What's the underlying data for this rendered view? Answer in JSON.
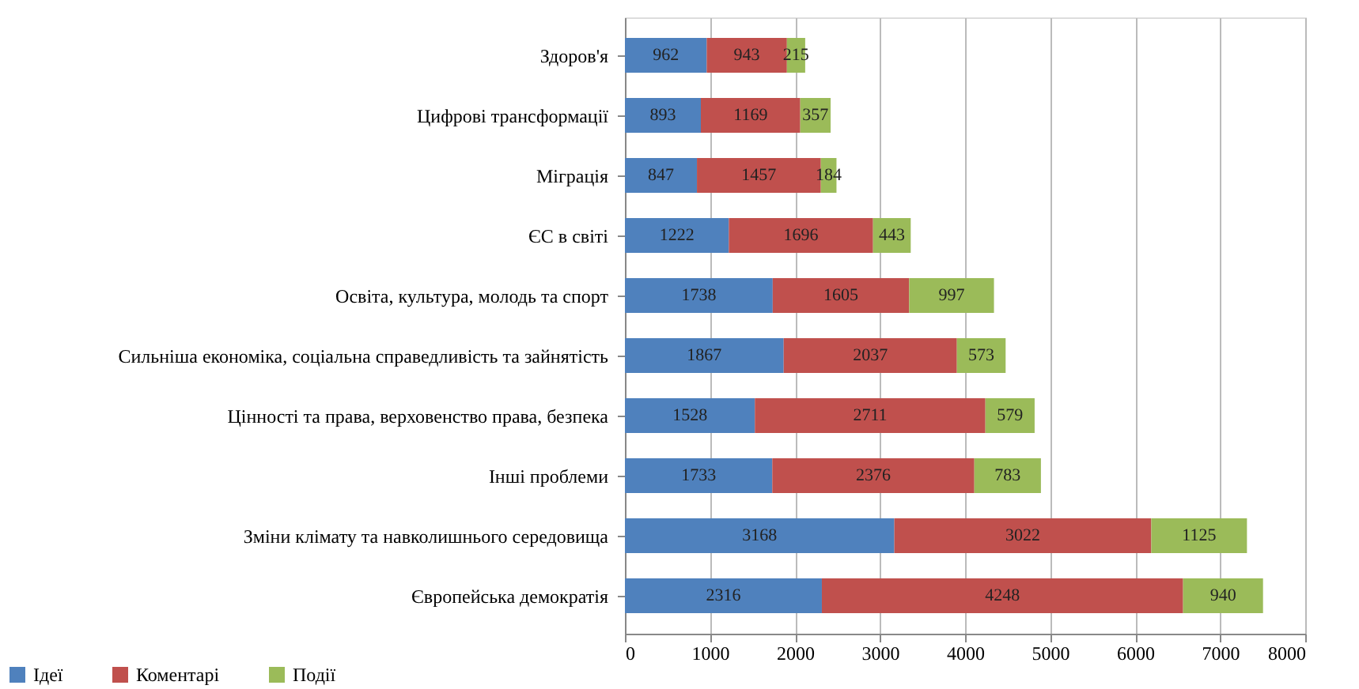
{
  "chart_data": {
    "type": "bar",
    "orientation": "horizontal",
    "stacked": true,
    "data_labels": true,
    "grid": "x",
    "legend": "bottom left",
    "categories": [
      "Здоров'я",
      "Цифрові трансформації",
      "Міграція",
      "ЄС в світі",
      "Освіта, культура, молодь та спорт",
      "Сильніша економіка, соціальна справедливість та зайнятість",
      "Цінності та права, верховенство права, безпека",
      "Інші проблеми",
      "Зміни клімату та навколишнього середовища",
      "Європейська демократія"
    ],
    "series": [
      {
        "name": "Ідеї",
        "color": "#4f81bd",
        "values": [
          962,
          893,
          847,
          1222,
          1738,
          1867,
          1528,
          1733,
          3168,
          2316
        ]
      },
      {
        "name": "Коментарі",
        "color": "#c0504d",
        "values": [
          943,
          1169,
          1457,
          1696,
          1605,
          2037,
          2711,
          2376,
          3022,
          4248
        ]
      },
      {
        "name": "Події",
        "color": "#9bbb59",
        "values": [
          215,
          357,
          184,
          443,
          997,
          573,
          579,
          783,
          1125,
          940
        ]
      }
    ],
    "xlim": [
      0,
      8000
    ],
    "xticks": [
      0,
      1000,
      2000,
      3000,
      4000,
      5000,
      6000,
      7000,
      8000
    ]
  }
}
